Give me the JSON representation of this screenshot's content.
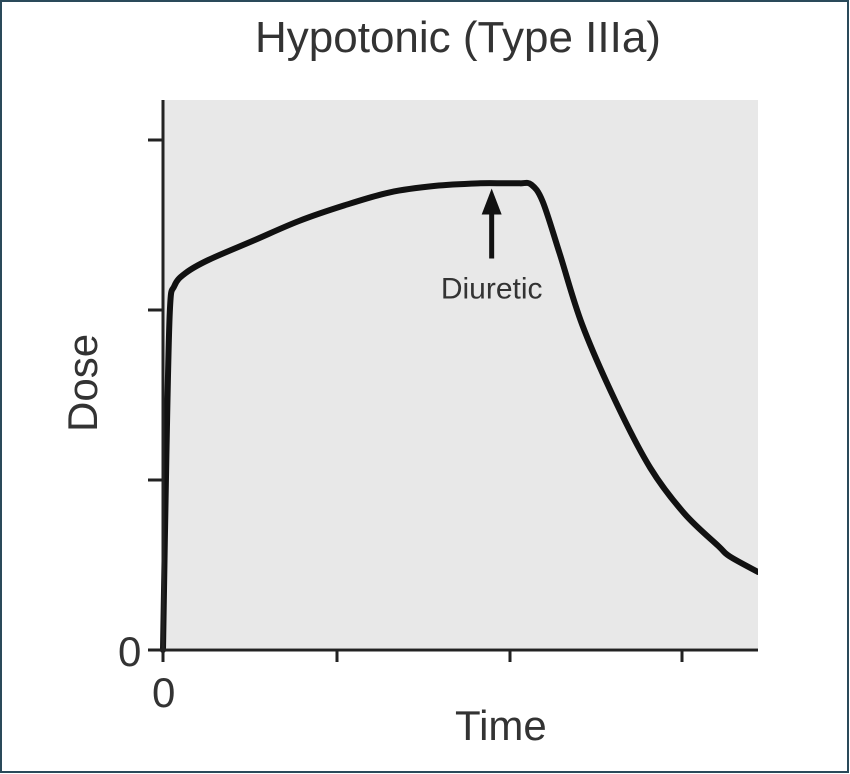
{
  "chart_data": {
    "type": "line",
    "title": "Hypotonic (Type IIIa)",
    "xlabel": "Time",
    "ylabel": "Dose",
    "x_tick_labels": [
      "0"
    ],
    "y_tick_labels": [
      "0"
    ],
    "xlim": [
      0,
      5
    ],
    "ylim": [
      0,
      4
    ],
    "series": [
      {
        "name": "",
        "x": [
          0,
          0.03,
          0.06,
          0.1,
          0.2,
          0.4,
          0.8,
          1.2,
          1.6,
          2.0,
          2.4,
          2.8,
          3.0,
          3.15,
          3.25,
          3.35,
          3.5,
          3.7,
          4.0,
          4.3,
          4.6,
          4.9,
          5.0,
          5.25
        ],
        "y": [
          0,
          1.5,
          2.6,
          2.8,
          2.9,
          3.0,
          3.15,
          3.3,
          3.42,
          3.52,
          3.57,
          3.59,
          3.59,
          3.59,
          3.58,
          3.45,
          3.05,
          2.5,
          1.9,
          1.4,
          1.05,
          0.8,
          0.72,
          0.6
        ]
      }
    ],
    "annotations": [
      {
        "text": "Diuretic",
        "x": 2.9,
        "y": 3.55,
        "arrow": "up"
      }
    ],
    "grid": false,
    "legend": "none",
    "colors": {
      "plot_background": "#e8e8e8",
      "line": "#111111",
      "axis": "#222222",
      "frame_border": "#2a4a5a"
    }
  }
}
